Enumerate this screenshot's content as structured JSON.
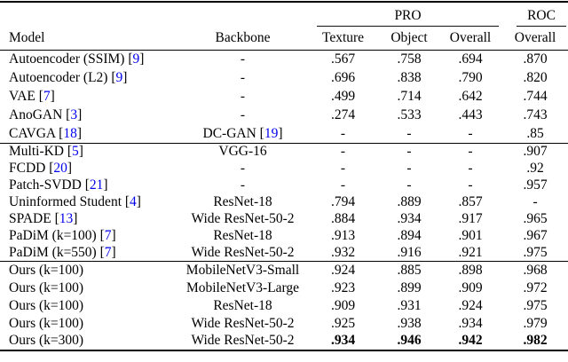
{
  "colors": {
    "citation_blue": "#0000ee",
    "text": "#000000",
    "background": "#ffffff"
  },
  "table": {
    "group_header": {
      "pro_label": "PRO",
      "roc_label": "ROC"
    },
    "columns": {
      "model": "Model",
      "backbone": "Backbone",
      "texture": "Texture",
      "object": "Object",
      "pro_overall": "Overall",
      "roc_overall": "Overall"
    },
    "groups": [
      {
        "rows": [
          {
            "model": "Autoencoder (SSIM)",
            "model_cite": "9",
            "backbone": "-",
            "backbone_cite": "",
            "values": [
              ".567",
              ".758",
              ".694",
              ".870"
            ],
            "bold": false
          },
          {
            "model": "Autoencoder (L2)",
            "model_cite": "9",
            "backbone": "-",
            "backbone_cite": "",
            "values": [
              ".696",
              ".838",
              ".790",
              ".820"
            ],
            "bold": false
          },
          {
            "model": "VAE",
            "model_cite": "7",
            "backbone": "-",
            "backbone_cite": "",
            "values": [
              ".499",
              ".714",
              ".642",
              ".744"
            ],
            "bold": false
          },
          {
            "model": "AnoGAN",
            "model_cite": "3",
            "backbone": "-",
            "backbone_cite": "",
            "values": [
              ".274",
              ".533",
              ".443",
              ".743"
            ],
            "bold": false
          },
          {
            "model": "CAVGA",
            "model_cite": "18",
            "backbone": "DC-GAN",
            "backbone_cite": "19",
            "values": [
              "-",
              "-",
              "-",
              ".85"
            ],
            "bold": false
          }
        ]
      },
      {
        "rows": [
          {
            "model": "Multi-KD",
            "model_cite": "5",
            "backbone": "VGG-16",
            "backbone_cite": "",
            "values": [
              "-",
              "-",
              "-",
              ".907"
            ],
            "bold": false
          },
          {
            "model": "FCDD",
            "model_cite": "20",
            "backbone": "-",
            "backbone_cite": "",
            "values": [
              "-",
              "-",
              "-",
              ".92"
            ],
            "bold": false
          },
          {
            "model": "Patch-SVDD",
            "model_cite": "21",
            "backbone": "-",
            "backbone_cite": "",
            "values": [
              "-",
              "-",
              "-",
              ".957"
            ],
            "bold": false
          },
          {
            "model": "Uninformed Student",
            "model_cite": "4",
            "backbone": "ResNet-18",
            "backbone_cite": "",
            "values": [
              ".794",
              ".889",
              ".857",
              "-"
            ],
            "bold": false
          },
          {
            "model": "SPADE",
            "model_cite": "13",
            "backbone": "Wide ResNet-50-2",
            "backbone_cite": "",
            "values": [
              ".884",
              ".934",
              ".917",
              ".965"
            ],
            "bold": false
          },
          {
            "model": "PaDiM (k=100)",
            "model_cite": "7",
            "backbone": "ResNet-18",
            "backbone_cite": "",
            "values": [
              ".913",
              ".894",
              ".901",
              ".967"
            ],
            "bold": false
          },
          {
            "model": "PaDiM (k=550)",
            "model_cite": "7",
            "backbone": "Wide ResNet-50-2",
            "backbone_cite": "",
            "values": [
              ".932",
              ".916",
              ".921",
              ".975"
            ],
            "bold": false
          }
        ]
      },
      {
        "rows": [
          {
            "model": "Ours (k=100)",
            "model_cite": "",
            "backbone": "MobileNetV3-Small",
            "backbone_cite": "",
            "values": [
              ".924",
              ".885",
              ".898",
              ".968"
            ],
            "bold": false
          },
          {
            "model": "Ours (k=100)",
            "model_cite": "",
            "backbone": "MobileNetV3-Large",
            "backbone_cite": "",
            "values": [
              ".923",
              ".899",
              ".909",
              ".972"
            ],
            "bold": false
          },
          {
            "model": "Ours (k=100)",
            "model_cite": "",
            "backbone": "ResNet-18",
            "backbone_cite": "",
            "values": [
              ".909",
              ".931",
              ".924",
              ".975"
            ],
            "bold": false
          },
          {
            "model": "Ours (k=100)",
            "model_cite": "",
            "backbone": "Wide ResNet-50-2",
            "backbone_cite": "",
            "values": [
              ".925",
              ".938",
              ".934",
              ".979"
            ],
            "bold": false
          },
          {
            "model": "Ours (k=300)",
            "model_cite": "",
            "backbone": "Wide ResNet-50-2",
            "backbone_cite": "",
            "values": [
              ".934",
              ".946",
              ".942",
              ".982"
            ],
            "bold": true
          }
        ]
      }
    ]
  }
}
